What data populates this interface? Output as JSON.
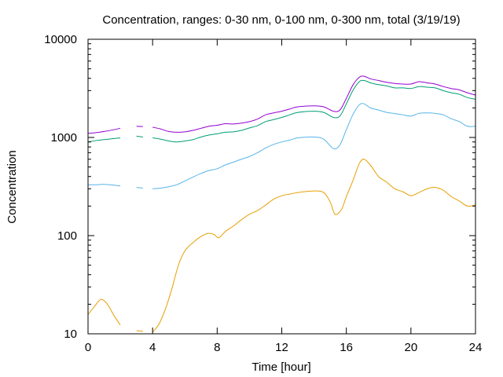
{
  "chart_data": {
    "type": "line",
    "title": "Concentration, ranges: 0-30 nm, 0-100 nm, 0-300 nm, total (3/19/19)",
    "xlabel": "Time [hour]",
    "ylabel": "Concentration",
    "xlim": [
      0,
      24
    ],
    "ylim": [
      10,
      10000
    ],
    "yscale": "log",
    "x_ticks": [
      0,
      4,
      8,
      12,
      16,
      20,
      24
    ],
    "y_ticks": [
      10,
      100,
      1000,
      10000
    ],
    "x_tick_labels": [
      "0",
      "4",
      "8",
      "12",
      "16",
      "20",
      "24"
    ],
    "y_tick_labels": [
      "10",
      "100",
      "1000",
      "10000"
    ],
    "grid": false,
    "legend": "none",
    "series": [
      {
        "color": "#e69f00",
        "segments": [
          [
            [
              0,
              15.7
            ],
            [
              0.4,
              19
            ],
            [
              0.8,
              22.4
            ],
            [
              1.2,
              20
            ],
            [
              1.6,
              15.4
            ],
            [
              2.0,
              12.3
            ]
          ],
          [
            [
              3.0,
              10.8
            ],
            [
              3.4,
              10.6
            ]
          ],
          [
            [
              4.0,
              10.4
            ],
            [
              4.4,
              12.6
            ],
            [
              4.8,
              18
            ],
            [
              5.2,
              29
            ],
            [
              5.6,
              50
            ],
            [
              6.0,
              70
            ],
            [
              6.5,
              85
            ],
            [
              7.0,
              98
            ],
            [
              7.4,
              105
            ],
            [
              7.8,
              103
            ],
            [
              8.1,
              95
            ],
            [
              8.5,
              110
            ],
            [
              9.0,
              125
            ],
            [
              9.5,
              145
            ],
            [
              10.0,
              165
            ],
            [
              10.5,
              180
            ],
            [
              11.0,
              205
            ],
            [
              11.5,
              235
            ],
            [
              12.0,
              255
            ],
            [
              12.5,
              265
            ],
            [
              13.0,
              275
            ],
            [
              14.0,
              285
            ],
            [
              14.6,
              275
            ],
            [
              15.0,
              220
            ],
            [
              15.3,
              165
            ],
            [
              15.7,
              185
            ],
            [
              16.0,
              250
            ],
            [
              16.4,
              360
            ],
            [
              16.8,
              540
            ],
            [
              17.1,
              600
            ],
            [
              17.5,
              520
            ],
            [
              18.0,
              400
            ],
            [
              18.5,
              350
            ],
            [
              19.0,
              300
            ],
            [
              19.5,
              280
            ],
            [
              20.0,
              255
            ],
            [
              20.5,
              275
            ],
            [
              21.0,
              300
            ],
            [
              21.5,
              310
            ],
            [
              22.0,
              290
            ],
            [
              22.5,
              250
            ],
            [
              23.0,
              225
            ],
            [
              23.5,
              200
            ],
            [
              24.0,
              205
            ]
          ]
        ]
      },
      {
        "color": "#56b4e9",
        "segments": [
          [
            [
              0,
              330
            ],
            [
              0.5,
              330
            ],
            [
              1.0,
              333
            ],
            [
              1.5,
              328
            ],
            [
              2.0,
              320
            ]
          ],
          [
            [
              3.0,
              310
            ],
            [
              3.4,
              305
            ]
          ],
          [
            [
              4.0,
              300
            ],
            [
              4.5,
              305
            ],
            [
              5.0,
              315
            ],
            [
              5.5,
              330
            ],
            [
              6.0,
              360
            ],
            [
              6.5,
              395
            ],
            [
              7.0,
              430
            ],
            [
              7.5,
              460
            ],
            [
              8.0,
              480
            ],
            [
              8.5,
              525
            ],
            [
              9.0,
              560
            ],
            [
              9.5,
              600
            ],
            [
              10.0,
              640
            ],
            [
              10.5,
              700
            ],
            [
              11.0,
              780
            ],
            [
              11.5,
              850
            ],
            [
              12.0,
              900
            ],
            [
              12.5,
              940
            ],
            [
              13.0,
              990
            ],
            [
              14.0,
              1010
            ],
            [
              14.6,
              960
            ],
            [
              15.2,
              770
            ],
            [
              15.6,
              840
            ],
            [
              16.0,
              1200
            ],
            [
              16.4,
              1700
            ],
            [
              16.8,
              2150
            ],
            [
              17.1,
              2200
            ],
            [
              17.5,
              2000
            ],
            [
              18.0,
              1900
            ],
            [
              18.5,
              1800
            ],
            [
              19.0,
              1750
            ],
            [
              19.5,
              1700
            ],
            [
              20.0,
              1650
            ],
            [
              20.5,
              1760
            ],
            [
              21.0,
              1780
            ],
            [
              21.5,
              1760
            ],
            [
              22.0,
              1700
            ],
            [
              22.5,
              1550
            ],
            [
              23.0,
              1450
            ],
            [
              23.5,
              1300
            ],
            [
              24.0,
              1300
            ]
          ]
        ]
      },
      {
        "color": "#009e73",
        "segments": [
          [
            [
              0,
              900
            ],
            [
              0.5,
              930
            ],
            [
              1.0,
              950
            ],
            [
              1.5,
              970
            ],
            [
              2.0,
              990
            ]
          ],
          [
            [
              3.0,
              1030
            ],
            [
              3.4,
              1010
            ]
          ],
          [
            [
              4.0,
              990
            ],
            [
              4.5,
              960
            ],
            [
              5.0,
              920
            ],
            [
              5.5,
              900
            ],
            [
              6.0,
              920
            ],
            [
              6.5,
              950
            ],
            [
              7.0,
              1010
            ],
            [
              7.5,
              1060
            ],
            [
              8.0,
              1090
            ],
            [
              8.5,
              1130
            ],
            [
              9.0,
              1140
            ],
            [
              9.5,
              1180
            ],
            [
              10.0,
              1250
            ],
            [
              10.5,
              1320
            ],
            [
              11.0,
              1450
            ],
            [
              11.5,
              1520
            ],
            [
              12.0,
              1600
            ],
            [
              12.5,
              1700
            ],
            [
              13.0,
              1800
            ],
            [
              14.0,
              1850
            ],
            [
              14.6,
              1800
            ],
            [
              15.2,
              1600
            ],
            [
              15.6,
              1650
            ],
            [
              16.0,
              2200
            ],
            [
              16.4,
              3000
            ],
            [
              16.8,
              3700
            ],
            [
              17.1,
              3800
            ],
            [
              17.5,
              3600
            ],
            [
              18.0,
              3450
            ],
            [
              18.5,
              3350
            ],
            [
              19.0,
              3200
            ],
            [
              19.5,
              3200
            ],
            [
              20.0,
              3150
            ],
            [
              20.5,
              3300
            ],
            [
              21.0,
              3250
            ],
            [
              21.5,
              3200
            ],
            [
              22.0,
              3000
            ],
            [
              22.5,
              2850
            ],
            [
              23.0,
              2750
            ],
            [
              23.5,
              2550
            ],
            [
              24.0,
              2450
            ]
          ]
        ]
      },
      {
        "color": "#9400d3",
        "segments": [
          [
            [
              0,
              1100
            ],
            [
              0.5,
              1120
            ],
            [
              1.0,
              1150
            ],
            [
              1.5,
              1190
            ],
            [
              2.0,
              1240
            ]
          ],
          [
            [
              3.0,
              1300
            ],
            [
              3.4,
              1290
            ]
          ],
          [
            [
              4.0,
              1270
            ],
            [
              4.5,
              1220
            ],
            [
              5.0,
              1150
            ],
            [
              5.5,
              1130
            ],
            [
              6.0,
              1140
            ],
            [
              6.5,
              1180
            ],
            [
              7.0,
              1240
            ],
            [
              7.5,
              1300
            ],
            [
              8.0,
              1330
            ],
            [
              8.5,
              1380
            ],
            [
              9.0,
              1370
            ],
            [
              9.5,
              1400
            ],
            [
              10.0,
              1450
            ],
            [
              10.5,
              1540
            ],
            [
              11.0,
              1700
            ],
            [
              11.5,
              1780
            ],
            [
              12.0,
              1850
            ],
            [
              12.5,
              1950
            ],
            [
              13.0,
              2050
            ],
            [
              14.0,
              2100
            ],
            [
              14.6,
              2050
            ],
            [
              15.2,
              1850
            ],
            [
              15.6,
              1900
            ],
            [
              16.0,
              2500
            ],
            [
              16.4,
              3400
            ],
            [
              16.8,
              4100
            ],
            [
              17.1,
              4200
            ],
            [
              17.5,
              3950
            ],
            [
              18.0,
              3800
            ],
            [
              18.5,
              3650
            ],
            [
              19.0,
              3550
            ],
            [
              19.5,
              3500
            ],
            [
              20.0,
              3500
            ],
            [
              20.5,
              3700
            ],
            [
              21.0,
              3600
            ],
            [
              21.5,
              3500
            ],
            [
              22.0,
              3300
            ],
            [
              22.5,
              3150
            ],
            [
              23.0,
              3050
            ],
            [
              23.5,
              2850
            ],
            [
              24.0,
              2700
            ]
          ]
        ]
      }
    ]
  }
}
